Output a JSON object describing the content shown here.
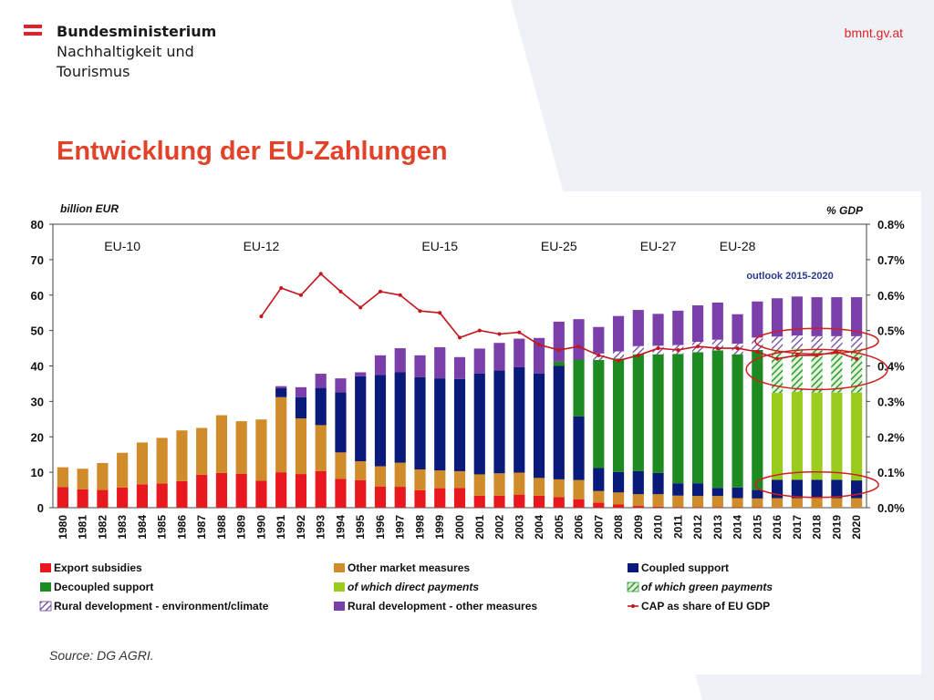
{
  "header": {
    "logo_lines": [
      "Bundesministerium",
      "Nachhaltigkeit und",
      "Tourismus"
    ],
    "url": "bmnt.gv.at",
    "brand_color": "#e4202a"
  },
  "slide": {
    "title": "Entwicklung der EU-Zahlungen"
  },
  "chart_data": {
    "type": "bar",
    "stacked": true,
    "y_left_label": "billion EUR",
    "y_right_label": "% GDP",
    "ylim": [
      0,
      80
    ],
    "y_ticks": [
      0,
      10,
      20,
      30,
      40,
      50,
      60,
      70,
      80
    ],
    "y2lim": [
      0,
      0.8
    ],
    "y2_ticks": [
      "0.0%",
      "0.1%",
      "0.2%",
      "0.3%",
      "0.4%",
      "0.5%",
      "0.6%",
      "0.7%",
      "0.8%"
    ],
    "grid": false,
    "categories": [
      "1980",
      "1981",
      "1982",
      "1983",
      "1984",
      "1985",
      "1986",
      "1987",
      "1988",
      "1989",
      "1990",
      "1991",
      "1992",
      "1993",
      "1994",
      "1995",
      "1996",
      "1997",
      "1998",
      "1999",
      "2000",
      "2001",
      "2002",
      "2003",
      "2004",
      "2005",
      "2006",
      "2007",
      "2008",
      "2009",
      "2010",
      "2011",
      "2012",
      "2013",
      "2014",
      "2015",
      "2016",
      "2017",
      "2018",
      "2019",
      "2020"
    ],
    "enlargements": [
      {
        "label": "EU-10",
        "year": "1983"
      },
      {
        "label": "EU-12",
        "year": "1990"
      },
      {
        "label": "EU-15",
        "year": "1999"
      },
      {
        "label": "EU-25",
        "year": "2005"
      },
      {
        "label": "EU-27",
        "year": "2010"
      },
      {
        "label": "EU-28",
        "year": "2014"
      }
    ],
    "annotation": "outlook 2015-2020",
    "series": [
      {
        "name": "Export subsidies",
        "color": "#e8181e",
        "pattern": "solid",
        "values": [
          5.8,
          5.2,
          5.0,
          5.7,
          6.6,
          6.8,
          7.5,
          9.3,
          9.8,
          9.6,
          7.6,
          10.0,
          9.5,
          10.3,
          8.1,
          7.8,
          6.0,
          5.9,
          4.9,
          5.5,
          5.6,
          3.4,
          3.4,
          3.7,
          3.4,
          3.0,
          2.4,
          1.4,
          0.9,
          0.5,
          0.3,
          0.2,
          0.2,
          0.2,
          0.1,
          0.1,
          0,
          0,
          0,
          0,
          0
        ]
      },
      {
        "name": "Other market measures",
        "color": "#d08c2b",
        "pattern": "solid",
        "values": [
          5.6,
          5.8,
          7.6,
          9.8,
          11.8,
          12.9,
          14.3,
          13.2,
          16.3,
          14.8,
          17.3,
          21.2,
          15.7,
          13.0,
          7.5,
          5.3,
          5.7,
          6.8,
          5.9,
          5.0,
          4.7,
          6.0,
          6.3,
          6.2,
          5.0,
          5.0,
          5.4,
          3.3,
          3.4,
          3.3,
          3.5,
          3.2,
          3.1,
          3.1,
          2.6,
          2.5,
          2.7,
          2.7,
          2.7,
          2.7,
          2.7
        ]
      },
      {
        "name": "Coupled support",
        "color": "#0a1a7a",
        "pattern": "solid",
        "values": [
          0,
          0,
          0,
          0,
          0,
          0,
          0,
          0,
          0,
          0,
          0,
          2.5,
          6.0,
          10.5,
          17.0,
          24.0,
          25.8,
          25.5,
          26.0,
          26.0,
          26.0,
          28.5,
          29.0,
          29.8,
          29.5,
          32.0,
          18.0,
          6.5,
          5.8,
          6.5,
          6.0,
          3.5,
          3.6,
          2.3,
          3.0,
          2.4,
          5.2,
          5.2,
          5.2,
          5.2,
          5.0
        ]
      },
      {
        "name": "Decoupled support",
        "color": "#1e8b22",
        "pattern": "solid",
        "values": [
          0,
          0,
          0,
          0,
          0,
          0,
          0,
          0,
          0,
          0,
          0,
          0,
          0,
          0,
          0,
          0,
          0,
          0,
          0,
          0,
          0,
          0,
          0,
          0,
          0,
          1.2,
          16.0,
          30.5,
          32.0,
          33.0,
          33.5,
          36.5,
          37.0,
          38.8,
          37.6,
          39.5,
          0,
          0,
          0,
          0,
          0
        ]
      },
      {
        "name": "of which direct payments",
        "color": "#9acc1e",
        "pattern": "solid",
        "values": [
          0,
          0,
          0,
          0,
          0,
          0,
          0,
          0,
          0,
          0,
          0,
          0,
          0,
          0,
          0,
          0,
          0,
          0,
          0,
          0,
          0,
          0,
          0,
          0,
          0,
          0,
          0,
          0,
          0,
          0,
          0,
          0,
          0,
          0,
          0,
          0,
          24.5,
          24.8,
          24.6,
          24.6,
          24.8
        ]
      },
      {
        "name": "of which green payments",
        "color": "#2e9a3a",
        "pattern": "green-hatch",
        "values": [
          0,
          0,
          0,
          0,
          0,
          0,
          0,
          0,
          0,
          0,
          0,
          0,
          0,
          0,
          0,
          0,
          0,
          0,
          0,
          0,
          0,
          0,
          0,
          0,
          0,
          0,
          0,
          0,
          0,
          0,
          0,
          0,
          0,
          0,
          0,
          0,
          12.3,
          12.3,
          12.3,
          12.3,
          12.3
        ]
      },
      {
        "name": "Rural development - environment/climate",
        "color": "#6b3fa0",
        "pattern": "purple-hatch",
        "values": [
          0,
          0,
          0,
          0,
          0,
          0,
          0,
          0,
          0,
          0,
          0,
          0,
          0,
          0,
          0,
          0,
          0,
          0,
          0,
          0,
          0,
          0,
          0,
          0,
          0,
          0,
          0,
          1.8,
          2.0,
          2.3,
          2.4,
          2.5,
          2.9,
          3.0,
          3.0,
          3.5,
          3.6,
          3.6,
          3.6,
          3.6,
          3.6
        ]
      },
      {
        "name": "Rural development - other measures",
        "color": "#7a3fa8",
        "pattern": "solid",
        "values": [
          0,
          0,
          0,
          0,
          0,
          0,
          0,
          0,
          0,
          0,
          0,
          0.6,
          2.8,
          4.0,
          3.9,
          1.1,
          5.5,
          6.8,
          6.2,
          8.8,
          6.2,
          7.0,
          7.8,
          8.0,
          10.0,
          11.3,
          11.4,
          7.5,
          10.0,
          10.2,
          9.0,
          9.7,
          10.3,
          10.5,
          8.3,
          10.2,
          10.8,
          11.0,
          11.0,
          11.0,
          11.0
        ]
      }
    ],
    "line_series": {
      "name": "CAP as share of EU GDP",
      "color": "#c4161c",
      "values": [
        null,
        null,
        null,
        null,
        null,
        null,
        null,
        null,
        null,
        null,
        0.54,
        0.62,
        0.6,
        0.66,
        0.61,
        0.565,
        0.61,
        0.6,
        0.555,
        0.55,
        0.48,
        0.5,
        0.49,
        0.495,
        0.46,
        0.445,
        0.455,
        0.43,
        0.415,
        0.43,
        0.45,
        0.445,
        0.455,
        0.45,
        0.45,
        0.44,
        0.42,
        0.43,
        0.43,
        0.44,
        0.42
      ]
    },
    "source": "Source: DG AGRI."
  }
}
